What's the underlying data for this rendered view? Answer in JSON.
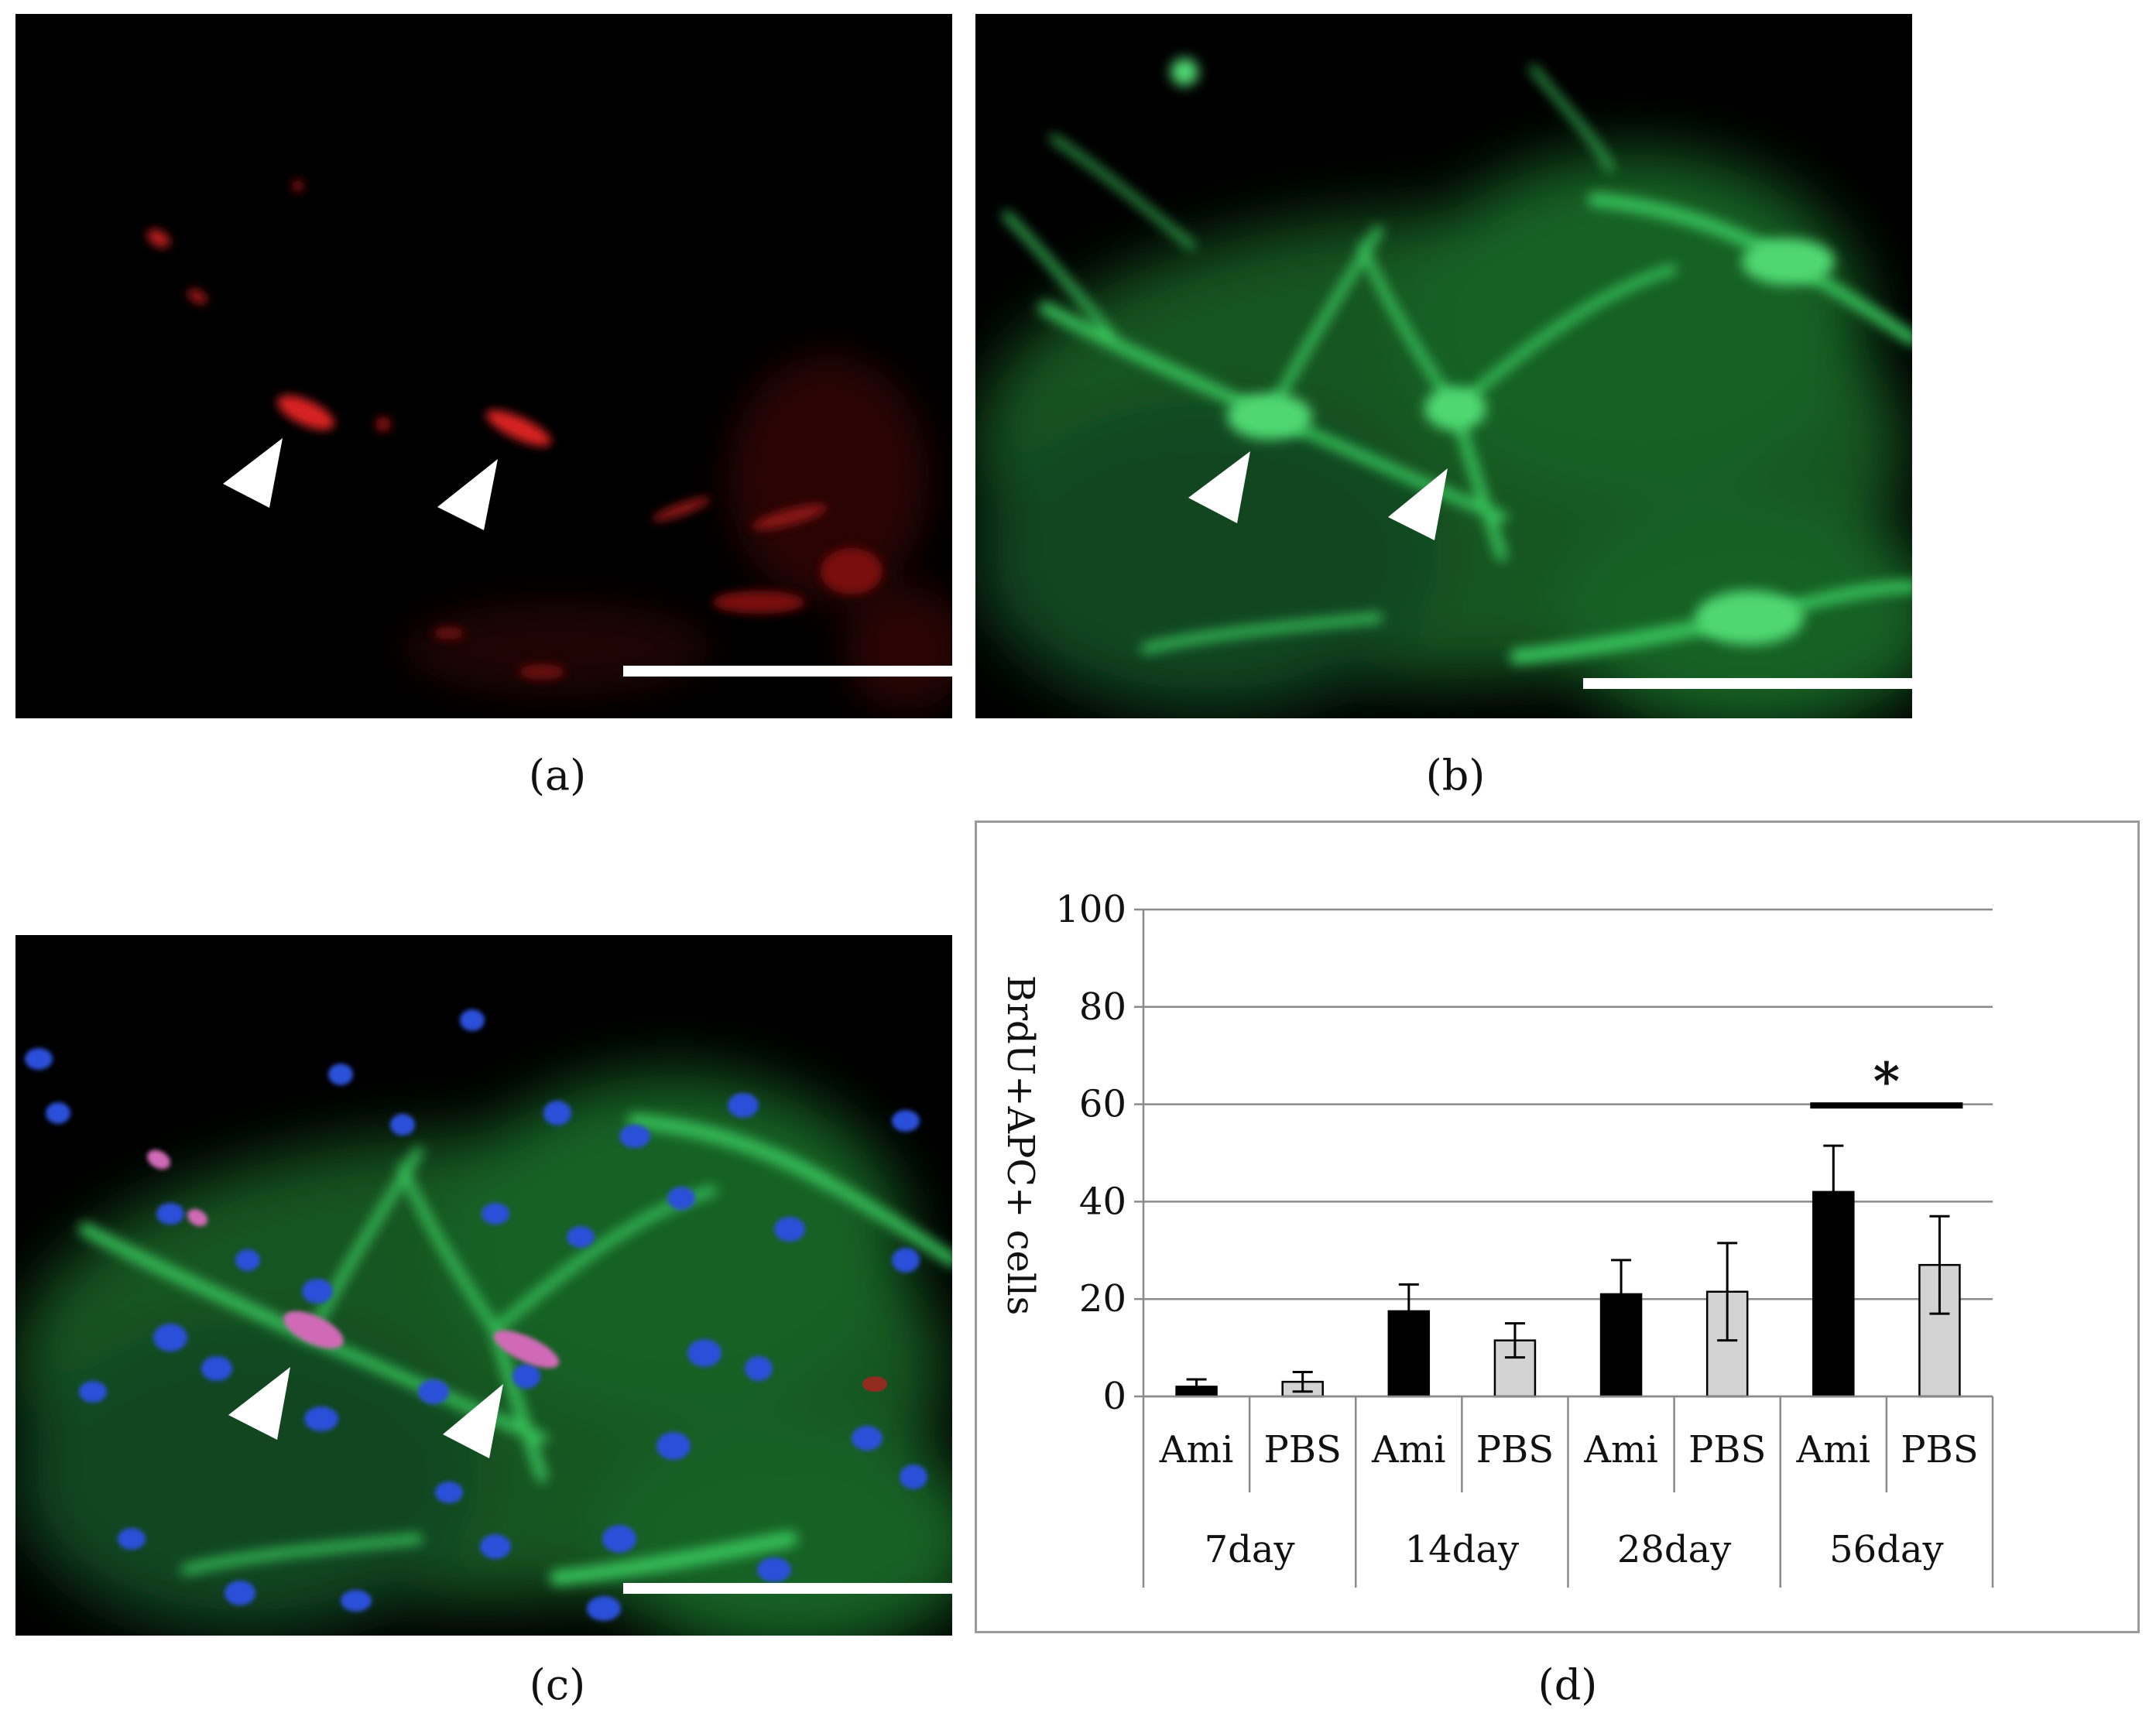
{
  "panels": [
    {
      "id": "a",
      "caption": "(a)",
      "channel": "red"
    },
    {
      "id": "b",
      "caption": "(b)",
      "channel": "green"
    },
    {
      "id": "c",
      "caption": "(c)",
      "channel": "merge"
    }
  ],
  "chart_caption": "(d)",
  "colors": {
    "red_signal": "#c81e1e",
    "green_signal": "#27b24a",
    "blue_signal": "#2b4fd8",
    "ami_bar": "#000000",
    "pbs_bar": "#d3d3d3",
    "scale_bar": "#ffffff",
    "arrowhead": "#ffffff"
  },
  "icons": [
    "arrowhead-icon",
    "scale-bar"
  ],
  "chart_data": {
    "type": "bar",
    "categories": [
      "7day",
      "14day",
      "28day",
      "56day"
    ],
    "subcategories": [
      "Ami",
      "PBS"
    ],
    "series": [
      {
        "name": "Ami",
        "values": [
          2,
          17.5,
          21,
          42
        ],
        "errors": [
          1.5,
          5.5,
          7,
          9.5
        ],
        "color": "#000000"
      },
      {
        "name": "PBS",
        "values": [
          3,
          11.5,
          21.5,
          27
        ],
        "errors": [
          2,
          3.5,
          10,
          10
        ],
        "color": "#d3d3d3"
      }
    ],
    "ylabel": "BrdU+APC+ cells",
    "ylim": [
      0,
      100
    ],
    "yticks": [
      0,
      20,
      40,
      60,
      80,
      100
    ],
    "grid": true,
    "annotations": [
      {
        "text": "*",
        "group": "56day",
        "between": [
          "Ami",
          "PBS"
        ]
      }
    ]
  }
}
